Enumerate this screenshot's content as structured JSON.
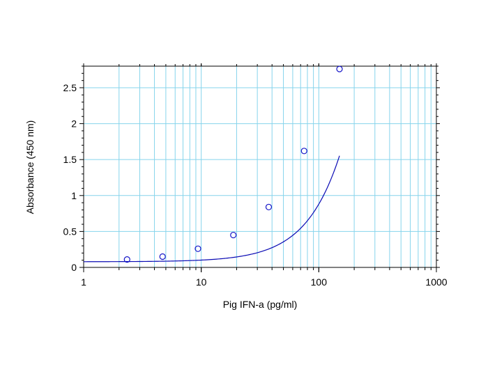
{
  "chart_data": {
    "type": "scatter",
    "xlabel": "Pig IFN-a (pg/ml)",
    "ylabel": "Absorbance (450 nm)",
    "x_scale": "log",
    "xlim": [
      1,
      1000
    ],
    "ylim": [
      0,
      2.8
    ],
    "x_ticks": [
      1,
      10,
      100,
      1000
    ],
    "x_tick_labels": [
      "1",
      "10",
      "100",
      "1000"
    ],
    "y_ticks": [
      0,
      0.5,
      1,
      1.5,
      2,
      2.5
    ],
    "y_tick_labels": [
      "0",
      "0.5",
      "1",
      "1.5",
      "2",
      "2.5"
    ],
    "grid": true,
    "series": [
      {
        "points": [
          {
            "x": 2.34,
            "y": 0.11
          },
          {
            "x": 4.69,
            "y": 0.15
          },
          {
            "x": 9.38,
            "y": 0.26
          },
          {
            "x": 18.75,
            "y": 0.45
          },
          {
            "x": 37.5,
            "y": 0.84
          },
          {
            "x": 75,
            "y": 1.62
          },
          {
            "x": 150,
            "y": 2.76
          }
        ]
      }
    ],
    "fit_curve": {
      "type": "4PL",
      "A": 0.0789,
      "B": 1.56,
      "C": 1000,
      "D": 30,
      "x_range": [
        1,
        150
      ]
    },
    "colors": {
      "curve": "#0a0ab4",
      "marker": "#1414c8",
      "grid": "#86d4ec",
      "axis": "#000000"
    }
  }
}
